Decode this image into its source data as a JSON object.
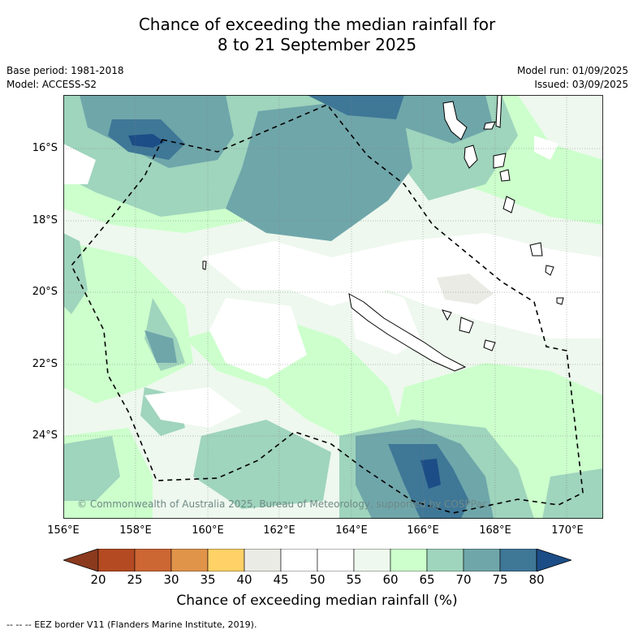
{
  "title_line1": "Chance of exceeding the median rainfall for",
  "title_line2": "8 to 21 September 2025",
  "base_period": "Base period: 1981-2018",
  "model": "Model: ACCESS-S2",
  "model_run": "Model run: 01/09/2025",
  "issued": "Issued: 03/09/2025",
  "lat_labels": [
    "16°S",
    "18°S",
    "20°S",
    "22°S",
    "24°S"
  ],
  "lon_labels": [
    "156°E",
    "158°E",
    "160°E",
    "162°E",
    "164°E",
    "166°E",
    "168°E",
    "170°E"
  ],
  "copyright": "© Commonwealth of Australia 2025, Bureau of Meteorology, supported by COSPPac",
  "colorbar": {
    "ticks": [
      "20",
      "25",
      "30",
      "35",
      "40",
      "45",
      "50",
      "55",
      "60",
      "65",
      "70",
      "75",
      "80"
    ],
    "label": "Chance of exceeding median rainfall (%)",
    "colors": [
      "#8b3a1e",
      "#b34a22",
      "#cc6633",
      "#e0944a",
      "#ffd166",
      "#ebebe6",
      "#ffffff",
      "#ffffff",
      "#eef8ee",
      "#ccffcc",
      "#9fd4bd",
      "#6fa6aa",
      "#3f7797",
      "#1c4d86"
    ]
  },
  "map_colors": {
    "c55": "#ffffff",
    "c60": "#eef8ee",
    "c65": "#ccffcc",
    "c70": "#9fd4bd",
    "c75": "#6fa6aa",
    "c80": "#3f7797",
    "c85": "#1c4d86",
    "c45": "#ebebe6"
  },
  "eez_note": "-- -- -- EEZ border V11 (Flanders Marine Institute, 2019)."
}
